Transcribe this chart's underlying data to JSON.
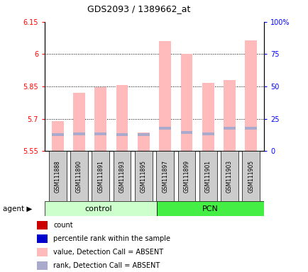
{
  "title": "GDS2093 / 1389662_at",
  "samples": [
    "GSM111888",
    "GSM111890",
    "GSM111891",
    "GSM111893",
    "GSM111895",
    "GSM111897",
    "GSM111899",
    "GSM111901",
    "GSM111903",
    "GSM111905"
  ],
  "pink_bar_top": [
    5.69,
    5.82,
    5.845,
    5.855,
    5.635,
    6.06,
    6.0,
    5.865,
    5.88,
    6.065
  ],
  "blue_marker_val": [
    5.625,
    5.63,
    5.63,
    5.625,
    5.625,
    5.655,
    5.635,
    5.63,
    5.655,
    5.655
  ],
  "bar_bottom": 5.55,
  "ylim_left": [
    5.55,
    6.15
  ],
  "ylim_right": [
    0,
    100
  ],
  "yticks_left": [
    5.55,
    5.7,
    5.85,
    6.0,
    6.15
  ],
  "ytick_labels_left": [
    "5.55",
    "5.7",
    "5.85",
    "6",
    "6.15"
  ],
  "ytick_labels_right": [
    "0",
    "25",
    "50",
    "75",
    "100%"
  ],
  "yticks_right": [
    0,
    25,
    50,
    75,
    100
  ],
  "grid_yticks": [
    5.7,
    5.85,
    6.0
  ],
  "pink_color": "#FFBBBB",
  "blue_color": "#AAAACC",
  "bar_width": 0.55,
  "control_color": "#CCFFCC",
  "pcn_color": "#44EE44",
  "sample_box_color": "#CCCCCC",
  "legend_items": [
    {
      "color": "#CC0000",
      "label": "count"
    },
    {
      "color": "#0000CC",
      "label": "percentile rank within the sample"
    },
    {
      "color": "#FFBBBB",
      "label": "value, Detection Call = ABSENT"
    },
    {
      "color": "#AAAACC",
      "label": "rank, Detection Call = ABSENT"
    }
  ]
}
